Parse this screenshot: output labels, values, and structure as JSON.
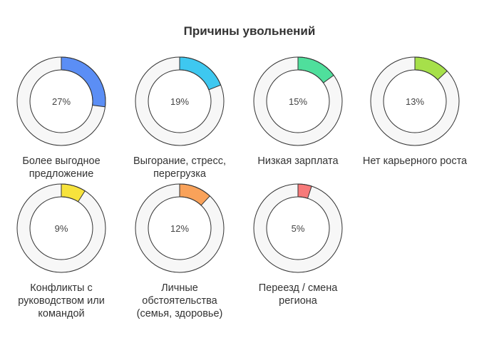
{
  "chart_data": {
    "type": "pie",
    "style": "donut",
    "title": "Причины увольнений",
    "items": [
      {
        "label": "Более выгодное предложение",
        "label_lines": [
          "Более выгодное",
          "предложение"
        ],
        "value": 27,
        "display": "27%",
        "color": "#5b8ef5"
      },
      {
        "label": "Выгорание, стресс, перегрузка",
        "label_lines": [
          "Выгорание, стресс,",
          "перегрузка"
        ],
        "value": 19,
        "display": "19%",
        "color": "#3ec8f0"
      },
      {
        "label": "Низкая зарплата",
        "label_lines": [
          "Низкая зарплата"
        ],
        "value": 15,
        "display": "15%",
        "color": "#4fdf9c"
      },
      {
        "label": "Нет карьерного роста",
        "label_lines": [
          "Нет карьерного роста"
        ],
        "value": 13,
        "display": "13%",
        "color": "#a6e04a"
      },
      {
        "label": "Конфликты с руководством или командой",
        "label_lines": [
          "Конфликты с",
          "руководством или",
          "командой"
        ],
        "value": 9,
        "display": "9%",
        "color": "#f7e33c"
      },
      {
        "label": "Личные обстоятельства (семья, здоровье)",
        "label_lines": [
          "Личные",
          "обстоятельства",
          "(семья, здоровье)"
        ],
        "value": 12,
        "display": "12%",
        "color": "#f9a25a"
      },
      {
        "label": "Переезд / смена региона",
        "label_lines": [
          "Переезд / смена",
          "региона"
        ],
        "value": 5,
        "display": "5%",
        "color": "#f77a7a"
      }
    ]
  }
}
